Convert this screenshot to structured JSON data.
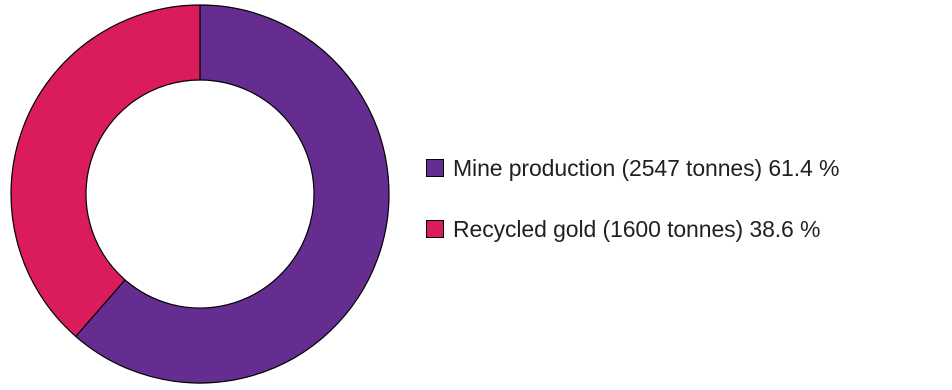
{
  "chart_data": {
    "type": "pie",
    "donut": true,
    "title": "",
    "slices": [
      {
        "label": "Mine production (2547 tonnes) 61.4 %",
        "name": "Mine production",
        "value": 2547,
        "percent": 61.4,
        "color": "#662d91"
      },
      {
        "label": "Recycled gold (1600 tonnes) 38.6 %",
        "name": "Recycled gold",
        "value": 1600,
        "percent": 38.6,
        "color": "#da1c5c"
      }
    ],
    "legend_position": "right",
    "start_angle": "top, clockwise"
  }
}
